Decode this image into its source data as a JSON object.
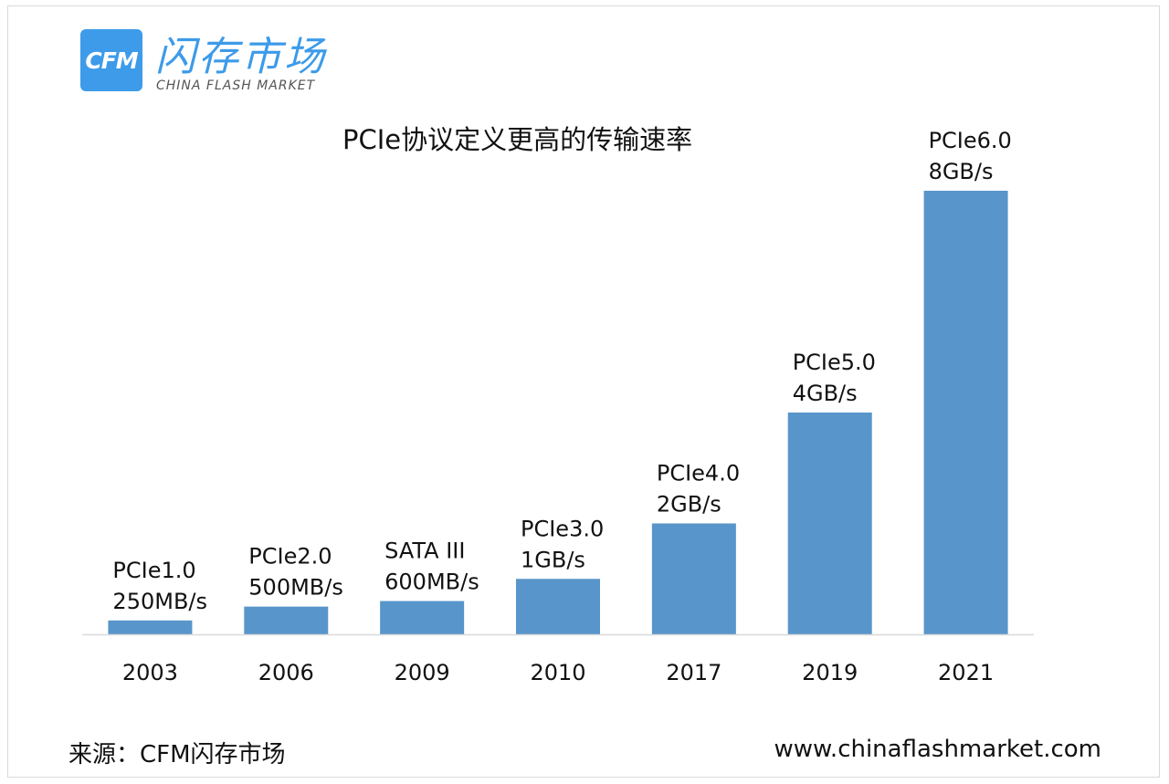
{
  "brand": {
    "logo_text": "CFM",
    "name_cn": "闪存市场",
    "name_en": "CHINA FLASH MARKET"
  },
  "footer": {
    "source": "来源：CFM闪存市场",
    "url": "www.chinaflashmarket.com"
  },
  "colors": {
    "bar": "#5895ca",
    "brand": "#3d9be9",
    "axis": "#d9d9d9"
  },
  "chart_data": {
    "type": "bar",
    "title": "PCIe协议定义更高的传输速率",
    "xlabel": "",
    "ylabel": "",
    "categories": [
      "2003",
      "2006",
      "2009",
      "2010",
      "2017",
      "2019",
      "2021"
    ],
    "values": [
      0.25,
      0.5,
      0.6,
      1,
      2,
      4,
      8
    ],
    "value_unit": "GB/s",
    "ylim": [
      0,
      8
    ],
    "grid": false,
    "data_labels": [
      [
        "PCIe1.0",
        "250MB/s"
      ],
      [
        "PCIe2.0",
        "500MB/s"
      ],
      [
        "SATA  III",
        "600MB/s"
      ],
      [
        "PCIe3.0",
        "1GB/s"
      ],
      [
        "PCIe4.0",
        "2GB/s"
      ],
      [
        "PCIe5.0",
        "4GB/s"
      ],
      [
        "PCIe6.0",
        "8GB/s"
      ]
    ]
  }
}
